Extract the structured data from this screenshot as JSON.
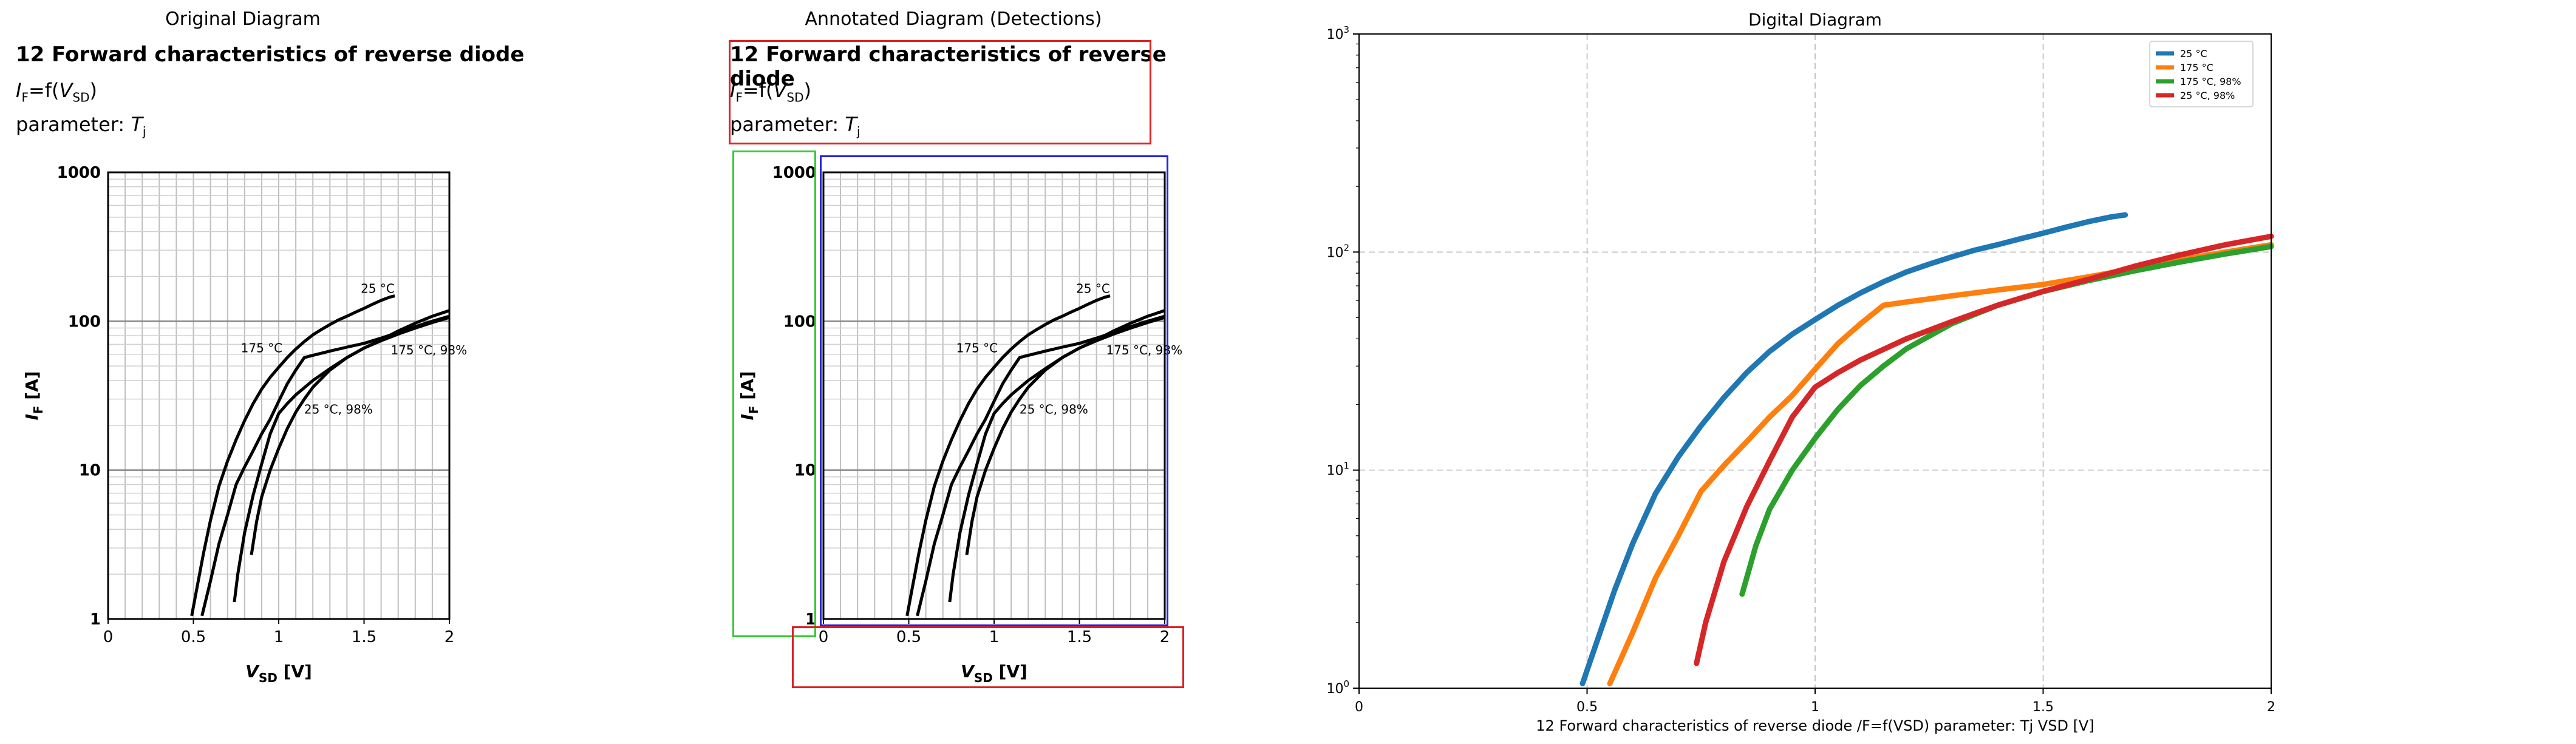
{
  "panels": {
    "original": {
      "title": "Original Diagram"
    },
    "annotated": {
      "title": "Annotated Diagram (Detections)"
    },
    "digital": {
      "title": "Digital Diagram"
    }
  },
  "datasheet": {
    "heading": "12 Forward characteristics of reverse diode",
    "formula_main": "I",
    "formula_main_sub": "F",
    "formula_mid": "=f(",
    "formula_var": "V",
    "formula_var_sub": "SD",
    "formula_end": ")",
    "parameter_label": "parameter: ",
    "parameter_var": "T",
    "parameter_var_sub": "j",
    "x_axis_label": "V",
    "x_axis_label_sub": "SD",
    "x_axis_unit": " [V]",
    "y_axis_label": "I",
    "y_axis_label_sub": "F",
    "y_axis_unit": " [A]",
    "x_ticks": [
      "0",
      "0.5",
      "1",
      "1.5",
      "2"
    ],
    "y_ticks": [
      "1",
      "10",
      "100",
      "1000"
    ],
    "curve_labels": [
      "25 °C",
      "175 °C",
      "175 °C, 98%",
      "25 °C, 98%"
    ]
  },
  "chart_data": {
    "type": "line",
    "title": "Digital Diagram",
    "xlabel": "12 Forward characteristics of reverse diode /F=f(VSD) parameter: Tj VSD [V]",
    "ylabel": "",
    "xlim": [
      0,
      2
    ],
    "ylim": [
      1,
      1000
    ],
    "y_scale": "log",
    "x_ticks": [
      "0",
      "0.5",
      "1",
      "1.5",
      "2"
    ],
    "y_ticks": [
      {
        "base": "10",
        "exp": "0"
      },
      {
        "base": "10",
        "exp": "1"
      },
      {
        "base": "10",
        "exp": "2"
      },
      {
        "base": "10",
        "exp": "3"
      }
    ],
    "grid": true,
    "legend_position": "top-right",
    "series": [
      {
        "name": "25 °C",
        "color": "#1f77b4",
        "x": [
          0.49,
          0.52,
          0.56,
          0.6,
          0.65,
          0.7,
          0.75,
          0.8,
          0.85,
          0.9,
          0.95,
          1.0,
          1.05,
          1.1,
          1.15,
          1.2,
          1.25,
          1.3,
          1.35,
          1.4,
          1.45,
          1.5,
          1.55,
          1.6,
          1.65,
          1.68
        ],
        "y": [
          1.05,
          1.6,
          2.8,
          4.6,
          7.8,
          11.5,
          16,
          21.5,
          28,
          35,
          42,
          49,
          57,
          65,
          73,
          81,
          88,
          95,
          102,
          108,
          115,
          122,
          130,
          138,
          145,
          148
        ]
      },
      {
        "name": "175 °C",
        "color": "#ff7f0e",
        "x": [
          0.55,
          0.6,
          0.65,
          0.7,
          0.75,
          0.8,
          0.85,
          0.9,
          0.95,
          1.0,
          1.05,
          1.1,
          1.15,
          1.2,
          1.3,
          1.4,
          1.5,
          1.6,
          1.7,
          1.8,
          1.9,
          2.0
        ],
        "y": [
          1.05,
          1.8,
          3.2,
          5.0,
          8.0,
          10.5,
          13.5,
          17.5,
          22,
          29,
          38,
          47,
          57,
          59,
          63,
          67,
          71,
          77,
          84,
          92,
          100,
          108
        ]
      },
      {
        "name": "175 °C, 98%",
        "color": "#2ca02c",
        "x": [
          0.84,
          0.87,
          0.9,
          0.95,
          1.0,
          1.05,
          1.1,
          1.15,
          1.2,
          1.3,
          1.4,
          1.5,
          1.6,
          1.7,
          1.8,
          1.9,
          2.0
        ],
        "y": [
          2.7,
          4.5,
          6.6,
          10,
          14,
          19,
          24.5,
          30,
          36,
          47,
          57,
          66,
          74,
          82,
          90,
          98,
          106
        ]
      },
      {
        "name": "25 °C, 98%",
        "color": "#d62728",
        "x": [
          0.74,
          0.76,
          0.8,
          0.85,
          0.9,
          0.95,
          1.0,
          1.05,
          1.1,
          1.2,
          1.3,
          1.4,
          1.5,
          1.6,
          1.7,
          1.8,
          1.9,
          2.0
        ],
        "y": [
          1.3,
          2.0,
          3.8,
          6.8,
          11,
          17.5,
          24,
          28,
          32,
          40,
          48,
          57,
          66,
          75,
          86,
          97,
          108,
          118
        ]
      }
    ]
  }
}
